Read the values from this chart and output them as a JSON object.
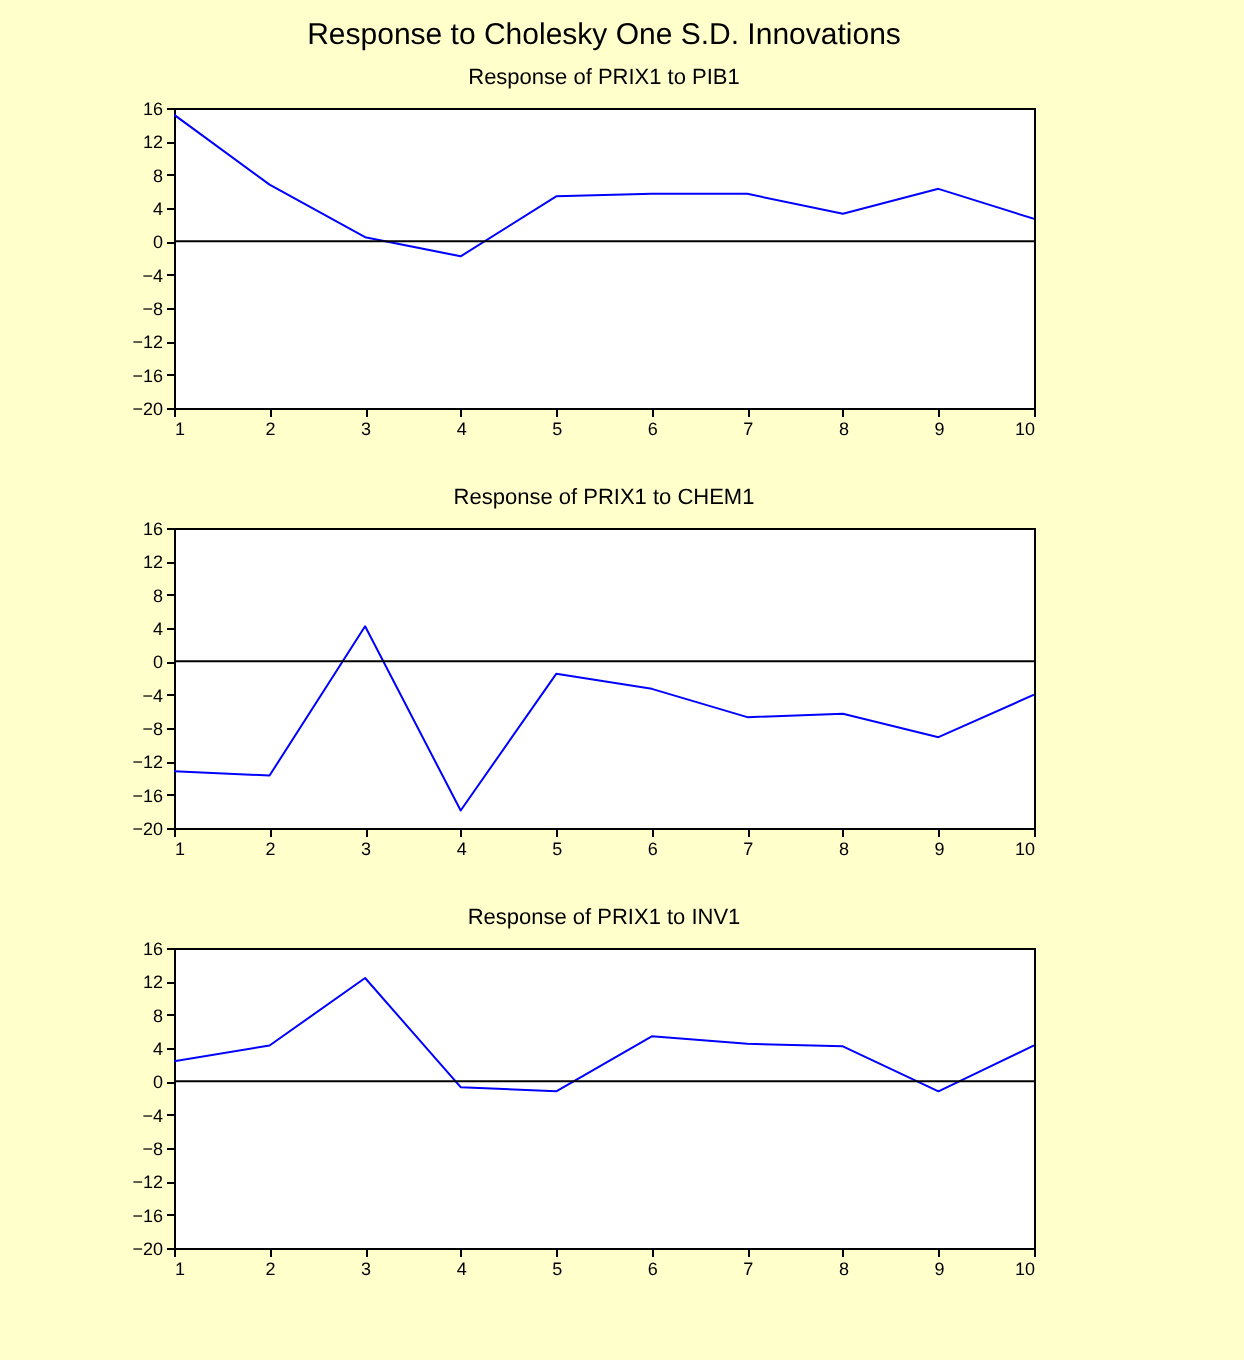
{
  "chart_data": [
    {
      "type": "line",
      "title": "Response to Cholesky One S.D. Innovations",
      "subtitle": "Response of PRIX1 to PIB1",
      "x": [
        1,
        2,
        3,
        4,
        5,
        6,
        7,
        8,
        9,
        10
      ],
      "series": [
        {
          "color": "#0000ff",
          "values": [
            15.2,
            6.8,
            0.5,
            -1.8,
            5.4,
            5.7,
            5.7,
            3.3,
            6.3,
            2.7
          ]
        }
      ],
      "xlim": [
        1,
        10
      ],
      "xticks": [
        1,
        2,
        3,
        4,
        5,
        6,
        7,
        8,
        9,
        10
      ],
      "ylim": [
        -20,
        16
      ],
      "yticks": [
        -20,
        -16,
        -12,
        -8,
        -4,
        0,
        4,
        8,
        12,
        16
      ],
      "ref_lines": [
        {
          "axis": "y",
          "value": 0,
          "color": "#000000"
        }
      ]
    },
    {
      "type": "line",
      "title": "Response of PRIX1 to CHEM1",
      "x": [
        1,
        2,
        3,
        4,
        5,
        6,
        7,
        8,
        9,
        10
      ],
      "series": [
        {
          "color": "#0000ff",
          "values": [
            -13.2,
            -13.7,
            4.2,
            -17.9,
            -1.5,
            -3.3,
            -6.7,
            -6.3,
            -9.1,
            -4.0
          ]
        }
      ],
      "xlim": [
        1,
        10
      ],
      "xticks": [
        1,
        2,
        3,
        4,
        5,
        6,
        7,
        8,
        9,
        10
      ],
      "ylim": [
        -20,
        16
      ],
      "yticks": [
        -20,
        -16,
        -12,
        -8,
        -4,
        0,
        4,
        8,
        12,
        16
      ],
      "ref_lines": [
        {
          "axis": "y",
          "value": 0,
          "color": "#000000"
        }
      ]
    },
    {
      "type": "line",
      "title": "Response of PRIX1 to INV1",
      "x": [
        1,
        2,
        3,
        4,
        5,
        6,
        7,
        8,
        9,
        10
      ],
      "series": [
        {
          "color": "#0000ff",
          "values": [
            2.4,
            4.3,
            12.4,
            -0.7,
            -1.2,
            5.4,
            4.5,
            4.2,
            -1.2,
            4.3
          ]
        }
      ],
      "xlim": [
        1,
        10
      ],
      "xticks": [
        1,
        2,
        3,
        4,
        5,
        6,
        7,
        8,
        9,
        10
      ],
      "ylim": [
        -20,
        16
      ],
      "yticks": [
        -20,
        -16,
        -12,
        -8,
        -4,
        0,
        4,
        8,
        12,
        16
      ],
      "ref_lines": [
        {
          "axis": "y",
          "value": 0,
          "color": "#000000"
        }
      ]
    }
  ]
}
